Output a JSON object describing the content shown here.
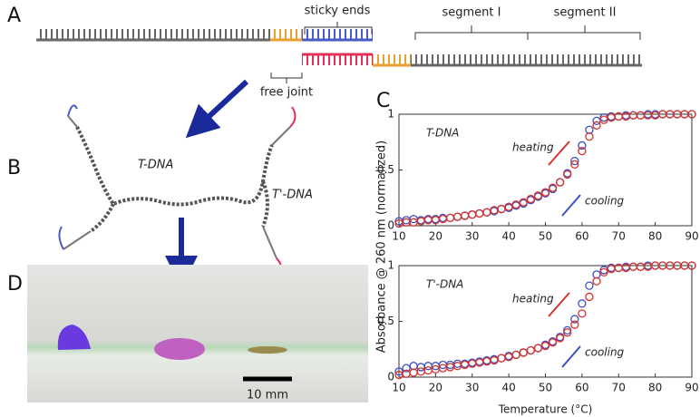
{
  "figure": {
    "panels": [
      "A",
      "B",
      "C",
      "D"
    ],
    "sticky_ends": "sticky ends",
    "segment_1": "segment I",
    "segment_2": "segment II",
    "free_joint": "free joint",
    "b_label_1": "T-DNA",
    "b_label_2": "T'-DNA",
    "scale_bar": "10 mm",
    "shared_ylabel": "Absorbance @ 260 nm (normalized)"
  },
  "chart_data": [
    {
      "type": "scatter",
      "annotations": [
        "T-DNA",
        "heating",
        "cooling"
      ],
      "x": [
        10,
        12,
        14,
        16,
        18,
        20,
        22,
        24,
        26,
        28,
        30,
        32,
        34,
        36,
        38,
        40,
        42,
        44,
        46,
        48,
        50,
        52,
        54,
        56,
        58,
        60,
        62,
        64,
        66,
        68,
        70,
        72,
        74,
        76,
        78,
        80,
        82,
        84,
        86,
        88,
        90
      ],
      "series": [
        {
          "name": "cooling",
          "color": "#3b4fc4",
          "values": [
            0.04,
            0.05,
            0.06,
            0.05,
            0.06,
            0.06,
            0.07,
            0.07,
            0.08,
            0.09,
            0.1,
            0.11,
            0.12,
            0.13,
            0.15,
            0.16,
            0.18,
            0.2,
            0.23,
            0.26,
            0.29,
            0.33,
            0.39,
            0.47,
            0.58,
            0.72,
            0.86,
            0.94,
            0.97,
            0.98,
            0.98,
            0.99,
            0.99,
            0.99,
            1,
            1,
            1,
            1,
            1,
            1,
            1
          ]
        },
        {
          "name": "heating",
          "color": "#d8322a",
          "values": [
            0.02,
            0.03,
            0.03,
            0.04,
            0.05,
            0.05,
            0.06,
            0.07,
            0.08,
            0.09,
            0.1,
            0.11,
            0.12,
            0.14,
            0.15,
            0.17,
            0.19,
            0.21,
            0.24,
            0.27,
            0.3,
            0.34,
            0.39,
            0.46,
            0.55,
            0.67,
            0.8,
            0.9,
            0.95,
            0.97,
            0.98,
            0.98,
            0.99,
            0.99,
            0.99,
            0.99,
            1,
            1,
            1,
            1,
            1
          ]
        }
      ],
      "xlim": [
        10,
        90
      ],
      "xticks": [
        10,
        20,
        30,
        40,
        50,
        60,
        70,
        80,
        90
      ],
      "ylim": [
        0,
        1
      ],
      "yticks": [
        0,
        0.5,
        1
      ]
    },
    {
      "type": "scatter",
      "annotations": [
        "T'-DNA",
        "heating",
        "cooling"
      ],
      "xlabel": "Temperature (°C)",
      "x": [
        10,
        12,
        14,
        16,
        18,
        20,
        22,
        24,
        26,
        28,
        30,
        32,
        34,
        36,
        38,
        40,
        42,
        44,
        46,
        48,
        50,
        52,
        54,
        56,
        58,
        60,
        62,
        64,
        66,
        68,
        70,
        72,
        74,
        76,
        78,
        80,
        82,
        84,
        86,
        88,
        90
      ],
      "series": [
        {
          "name": "cooling",
          "color": "#3b4fc4",
          "values": [
            0.05,
            0.08,
            0.1,
            0.09,
            0.1,
            0.1,
            0.11,
            0.11,
            0.12,
            0.12,
            0.13,
            0.14,
            0.15,
            0.16,
            0.17,
            0.19,
            0.2,
            0.22,
            0.24,
            0.26,
            0.29,
            0.32,
            0.36,
            0.42,
            0.52,
            0.66,
            0.82,
            0.92,
            0.96,
            0.98,
            0.98,
            0.99,
            0.99,
            0.99,
            1,
            1,
            1,
            1,
            1,
            1,
            1
          ]
        },
        {
          "name": "heating",
          "color": "#d8322a",
          "values": [
            0.02,
            0.03,
            0.04,
            0.05,
            0.06,
            0.07,
            0.08,
            0.09,
            0.1,
            0.11,
            0.12,
            0.13,
            0.14,
            0.15,
            0.17,
            0.18,
            0.2,
            0.22,
            0.24,
            0.26,
            0.28,
            0.31,
            0.35,
            0.4,
            0.47,
            0.57,
            0.72,
            0.86,
            0.94,
            0.97,
            0.98,
            0.98,
            0.99,
            0.99,
            0.99,
            1,
            1,
            1,
            1,
            1,
            1
          ]
        }
      ],
      "xlim": [
        10,
        90
      ],
      "xticks": [
        10,
        20,
        30,
        40,
        50,
        60,
        70,
        80,
        90
      ],
      "ylim": [
        0,
        1
      ],
      "yticks": [
        0,
        0.5,
        1
      ]
    }
  ]
}
